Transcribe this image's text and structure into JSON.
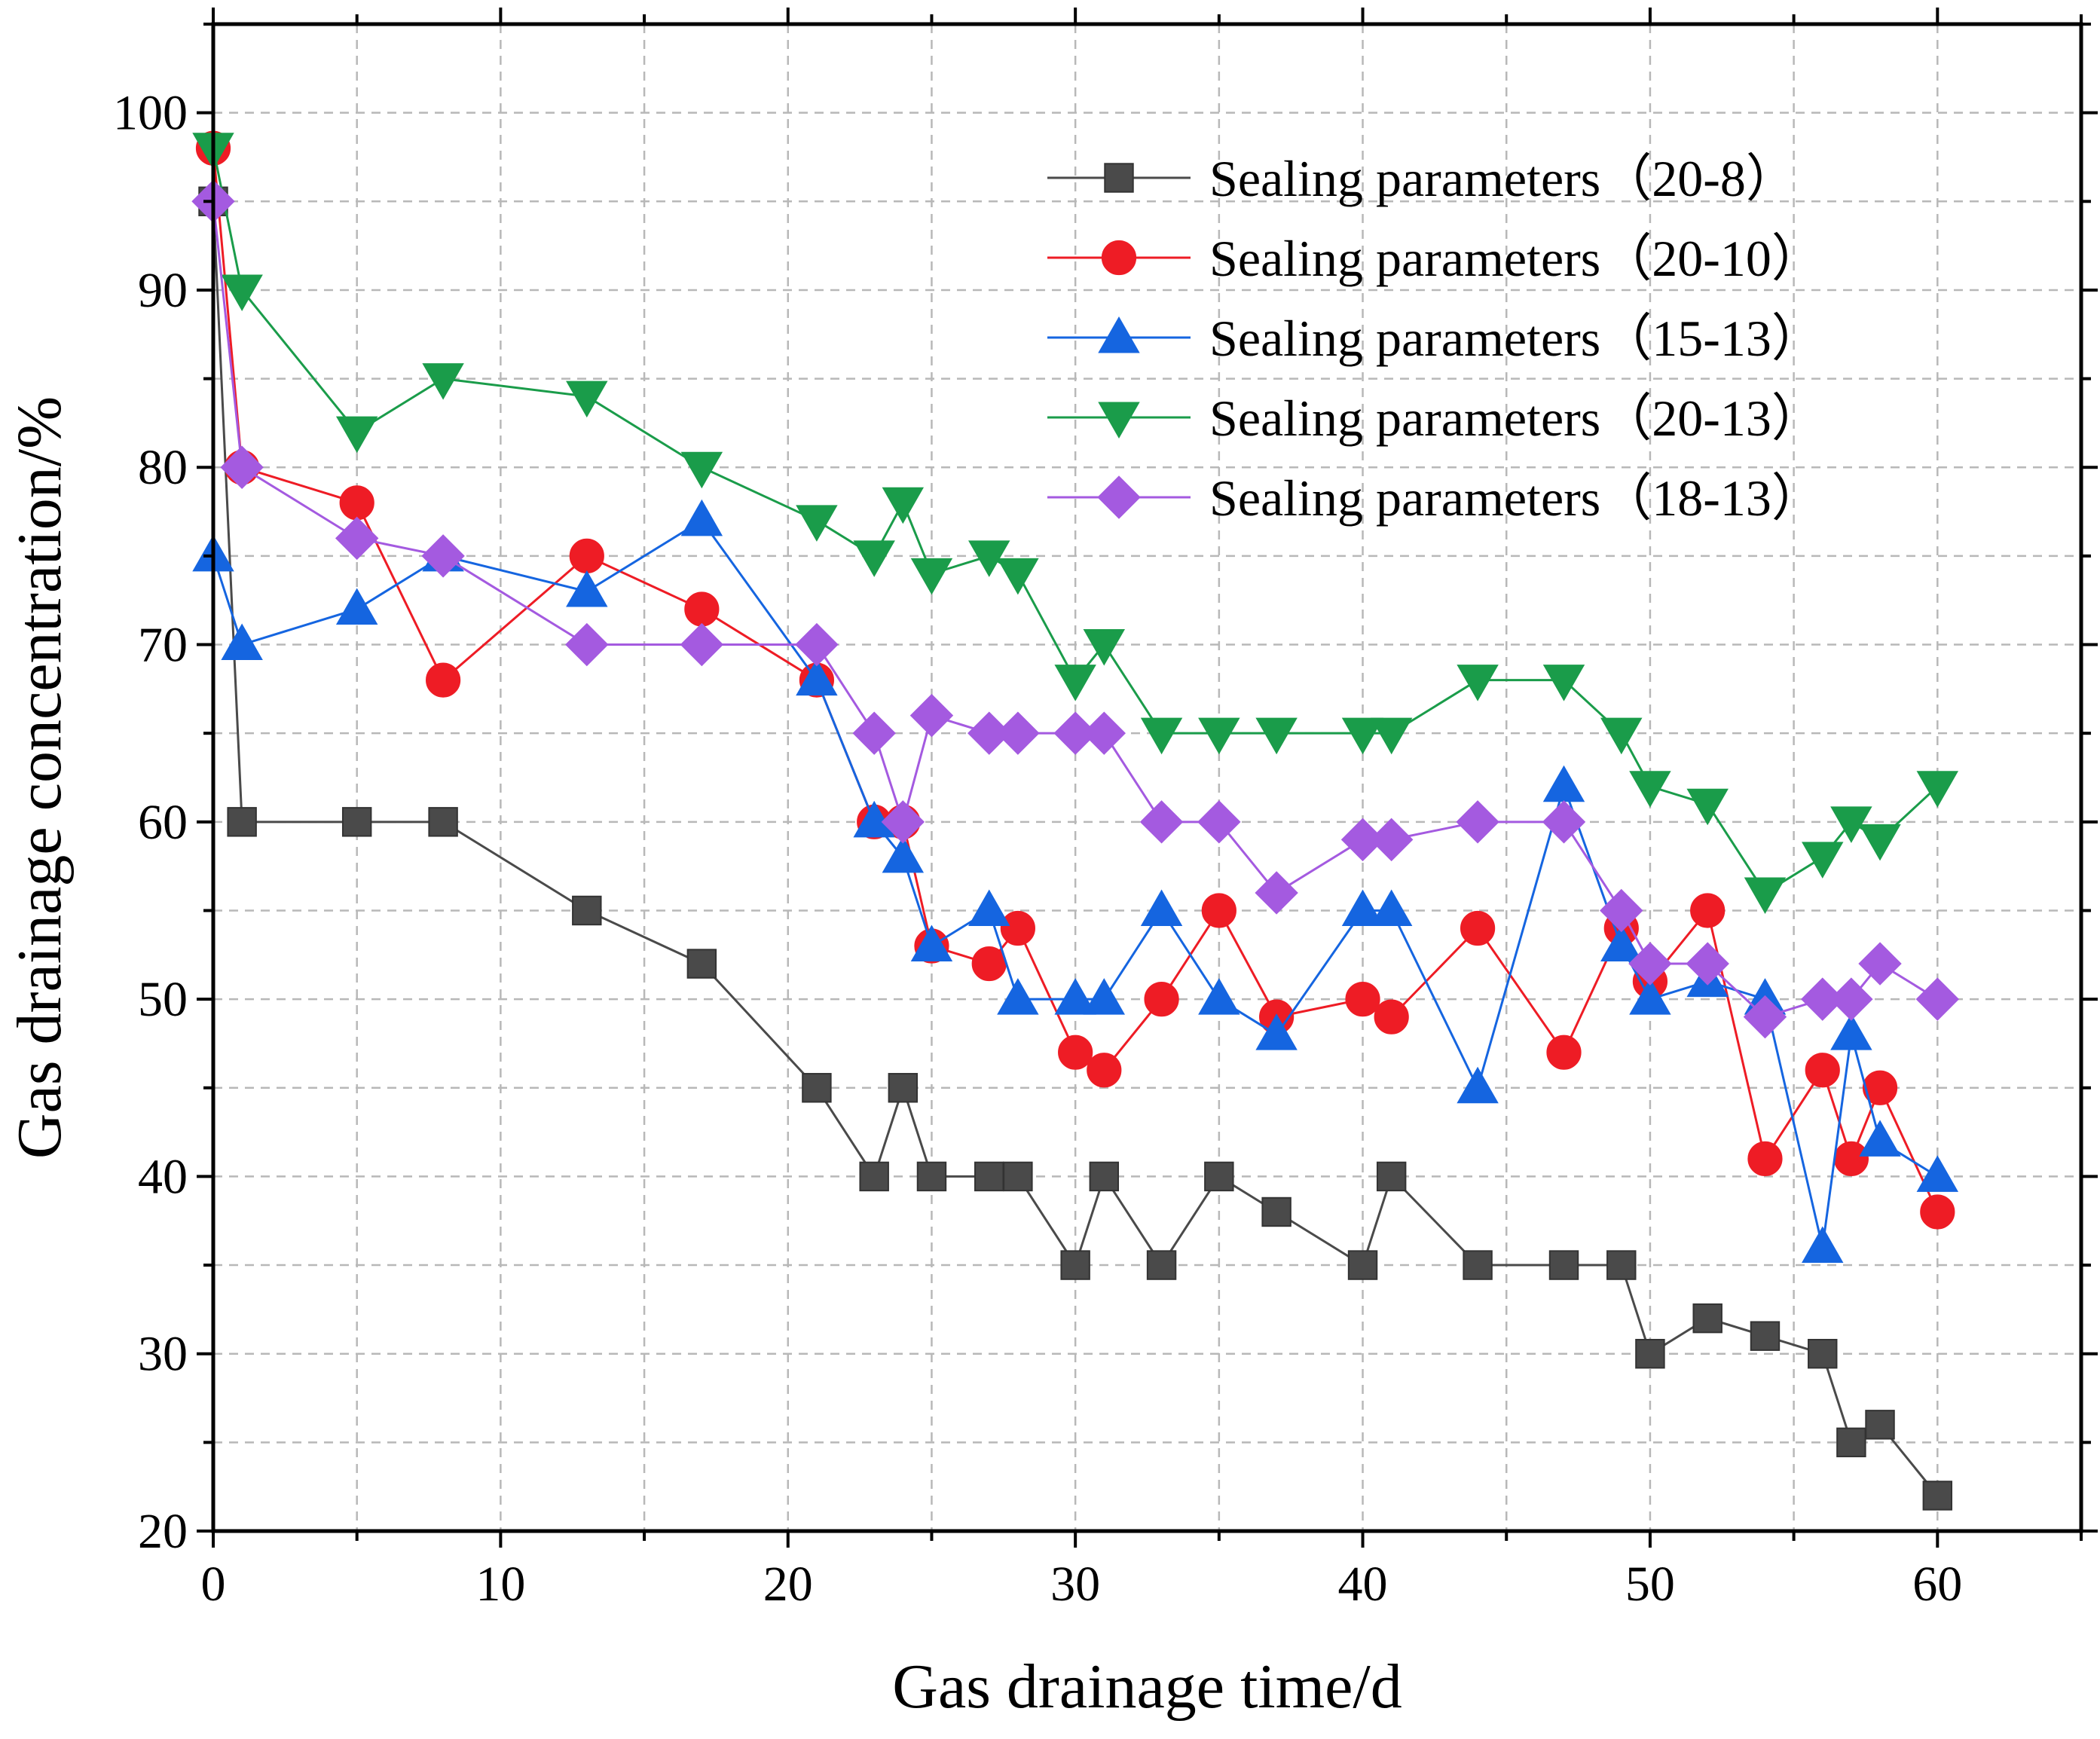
{
  "chart_data": {
    "type": "line",
    "title": "",
    "xlabel": "Gas drainage time/d",
    "ylabel": "Gas drainage concentration/%",
    "xlim": [
      0,
      65
    ],
    "ylim": [
      20,
      105
    ],
    "xticks": [
      0,
      10,
      20,
      30,
      40,
      50,
      60
    ],
    "yticks": [
      20,
      30,
      40,
      50,
      60,
      70,
      80,
      90,
      100
    ],
    "grid": true,
    "legend_position": "top-right",
    "series": [
      {
        "name": "Sealing parameters（20-8）",
        "color": "#4a4a4a",
        "marker": "square",
        "x": [
          0,
          1,
          5,
          8,
          13,
          17,
          21,
          23,
          24,
          25,
          27,
          28,
          30,
          31,
          33,
          35,
          37,
          40,
          41,
          44,
          47,
          49,
          50,
          52,
          54,
          56,
          57,
          58,
          60
        ],
        "y": [
          95,
          60,
          60,
          60,
          55,
          52,
          45,
          40,
          45,
          40,
          40,
          40,
          35,
          40,
          35,
          40,
          38,
          35,
          40,
          35,
          35,
          35,
          30,
          32,
          31,
          30,
          25,
          26,
          22
        ]
      },
      {
        "name": "Sealing parameters（20-10）",
        "color": "#ee1c25",
        "marker": "circle",
        "x": [
          0,
          1,
          5,
          8,
          13,
          17,
          21,
          23,
          24,
          25,
          27,
          28,
          30,
          31,
          33,
          35,
          37,
          40,
          41,
          44,
          47,
          49,
          50,
          52,
          54,
          56,
          57,
          58,
          60
        ],
        "y": [
          98,
          80,
          78,
          68,
          75,
          72,
          68,
          60,
          60,
          53,
          52,
          54,
          47,
          46,
          50,
          55,
          49,
          50,
          49,
          54,
          47,
          54,
          51,
          55,
          41,
          46,
          41,
          45,
          38
        ]
      },
      {
        "name": "Sealing parameters（15-13）",
        "color": "#1565e0",
        "marker": "triangle-up",
        "x": [
          0,
          1,
          5,
          8,
          13,
          17,
          21,
          23,
          24,
          25,
          27,
          28,
          30,
          31,
          33,
          35,
          37,
          40,
          41,
          44,
          47,
          49,
          50,
          52,
          54,
          56,
          57,
          58,
          60
        ],
        "y": [
          75,
          70,
          72,
          75,
          73,
          77,
          68,
          60,
          58,
          53,
          55,
          50,
          50,
          50,
          55,
          50,
          48,
          55,
          55,
          45,
          62,
          53,
          50,
          51,
          50,
          36,
          48,
          42,
          40
        ]
      },
      {
        "name": "Sealing parameters（20-13）",
        "color": "#1a9c4a",
        "marker": "triangle-down",
        "x": [
          0,
          1,
          5,
          8,
          13,
          17,
          21,
          23,
          24,
          25,
          27,
          28,
          30,
          31,
          33,
          35,
          37,
          40,
          41,
          44,
          47,
          49,
          50,
          52,
          54,
          56,
          57,
          58,
          60
        ],
        "y": [
          98,
          90,
          82,
          85,
          84,
          80,
          77,
          75,
          78,
          74,
          75,
          74,
          68,
          70,
          65,
          65,
          65,
          65,
          65,
          68,
          68,
          65,
          62,
          61,
          56,
          58,
          60,
          59,
          62
        ]
      },
      {
        "name": "Sealing parameters（18-13）",
        "color": "#a45ae0",
        "marker": "diamond",
        "x": [
          0,
          1,
          5,
          8,
          13,
          17,
          21,
          23,
          24,
          25,
          27,
          28,
          30,
          31,
          33,
          35,
          37,
          40,
          41,
          44,
          47,
          49,
          50,
          52,
          54,
          56,
          57,
          58,
          60
        ],
        "y": [
          95,
          80,
          76,
          75,
          70,
          70,
          70,
          65,
          60,
          66,
          65,
          65,
          65,
          65,
          60,
          60,
          56,
          59,
          59,
          60,
          60,
          55,
          52,
          52,
          49,
          50,
          50,
          52,
          50
        ]
      }
    ]
  }
}
